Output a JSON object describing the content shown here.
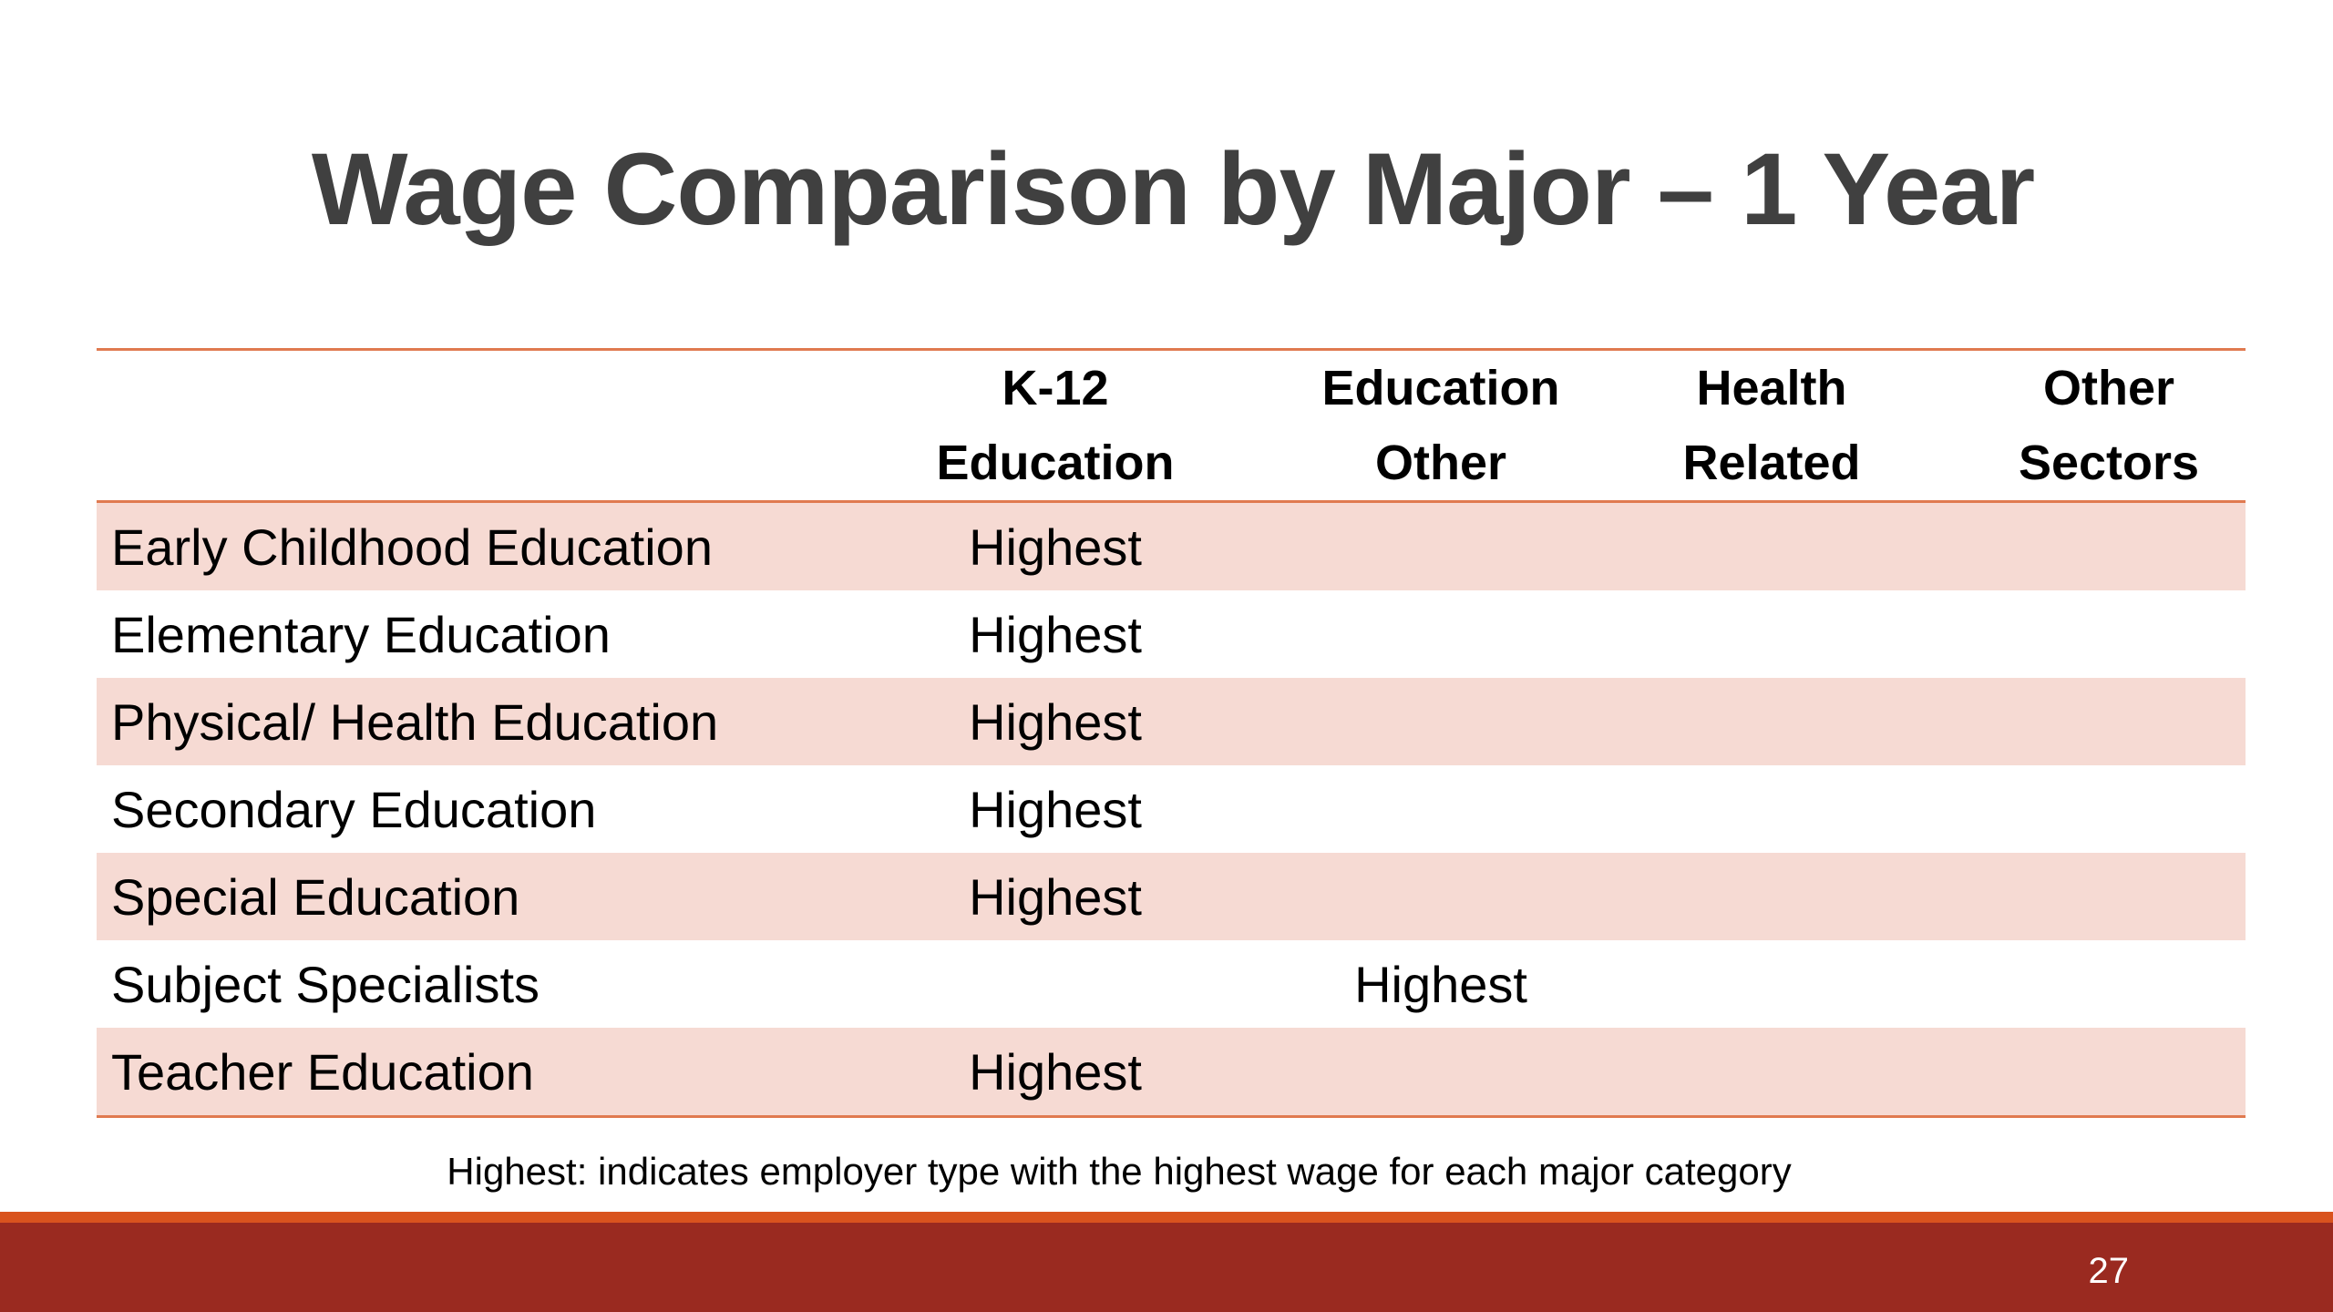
{
  "title": "Wage Comparison by Major – 1 Year",
  "table": {
    "headers": [
      {
        "line1": "",
        "line2": ""
      },
      {
        "line1": "K-12",
        "line2": "Education"
      },
      {
        "line1": "Education",
        "line2": "Other"
      },
      {
        "line1": "Health",
        "line2": "Related"
      },
      {
        "line1": "Other",
        "line2": "Sectors"
      }
    ],
    "rows": [
      {
        "major": "Early Childhood Education",
        "cells": [
          "Highest",
          "",
          "",
          ""
        ]
      },
      {
        "major": "Elementary Education",
        "cells": [
          "Highest",
          "",
          "",
          ""
        ]
      },
      {
        "major": "Physical/ Health Education",
        "cells": [
          "Highest",
          "",
          "",
          ""
        ]
      },
      {
        "major": "Secondary Education",
        "cells": [
          "Highest",
          "",
          "",
          ""
        ]
      },
      {
        "major": "Special Education",
        "cells": [
          "Highest",
          "",
          "",
          ""
        ]
      },
      {
        "major": "Subject Specialists",
        "cells": [
          "",
          "Highest",
          "",
          ""
        ]
      },
      {
        "major": "Teacher Education",
        "cells": [
          "Highest",
          "",
          "",
          ""
        ]
      }
    ]
  },
  "footnote": "Highest: indicates employer type with the highest wage for each major category",
  "page_number": "27",
  "colors": {
    "title": "#404040",
    "row_shade": "#f6dad3",
    "rule": "#e07a50",
    "band_light": "#d9531e",
    "band_dark": "#9a2a20"
  }
}
